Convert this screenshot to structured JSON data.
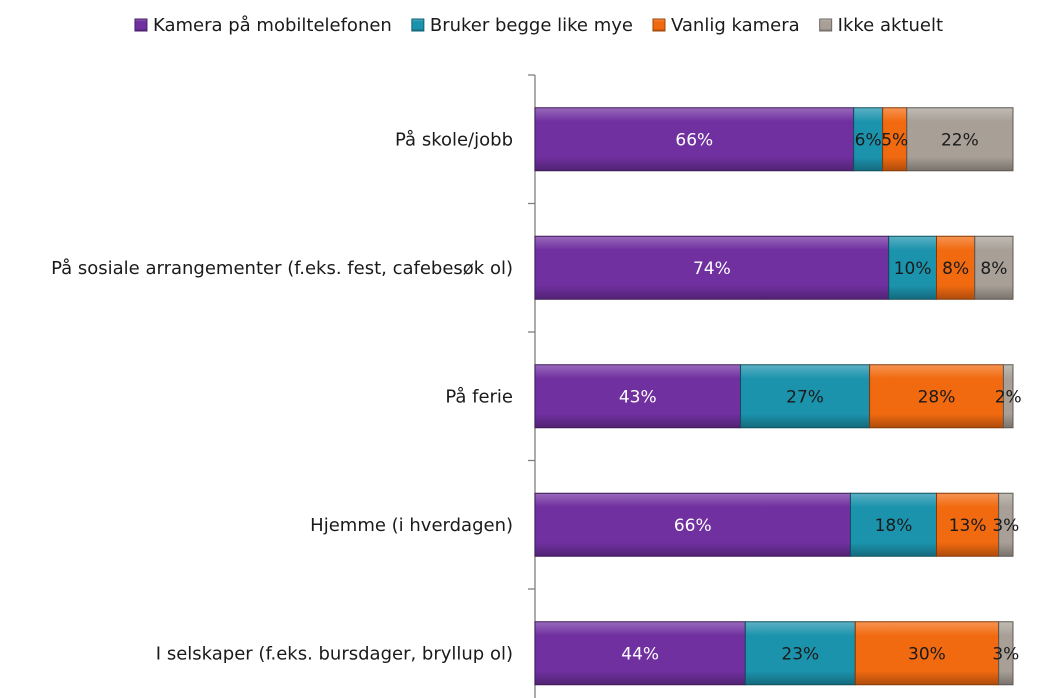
{
  "chart_data": {
    "type": "bar",
    "orientation": "horizontal",
    "stacked": true,
    "percent_stacked": true,
    "legend_position": "top",
    "grid": false,
    "xlim": [
      0,
      100
    ],
    "categories": [
      "På skole/jobb",
      "På sosiale arrangementer (f.eks. fest, cafebesøk ol)",
      "På ferie",
      "Hjemme (i hverdagen)",
      "I selskaper (f.eks. bursdager, bryllup ol)"
    ],
    "series": [
      {
        "name": "Kamera på mobiltelefonen",
        "color": "#7030A0",
        "label_color": "#ffffff",
        "values": [
          66,
          74,
          43,
          66,
          44
        ]
      },
      {
        "name": "Bruker begge like mye",
        "color": "#1C93AD",
        "label_color": "#1a1a1a",
        "values": [
          6,
          10,
          27,
          18,
          23
        ]
      },
      {
        "name": "Vanlig kamera",
        "color": "#F26A10",
        "label_color": "#1a1a1a",
        "values": [
          5,
          8,
          28,
          13,
          30
        ]
      },
      {
        "name": "Ikke aktuelt",
        "color": "#A8A097",
        "label_color": "#1a1a1a",
        "values": [
          22,
          8,
          2,
          3,
          3
        ]
      }
    ]
  }
}
